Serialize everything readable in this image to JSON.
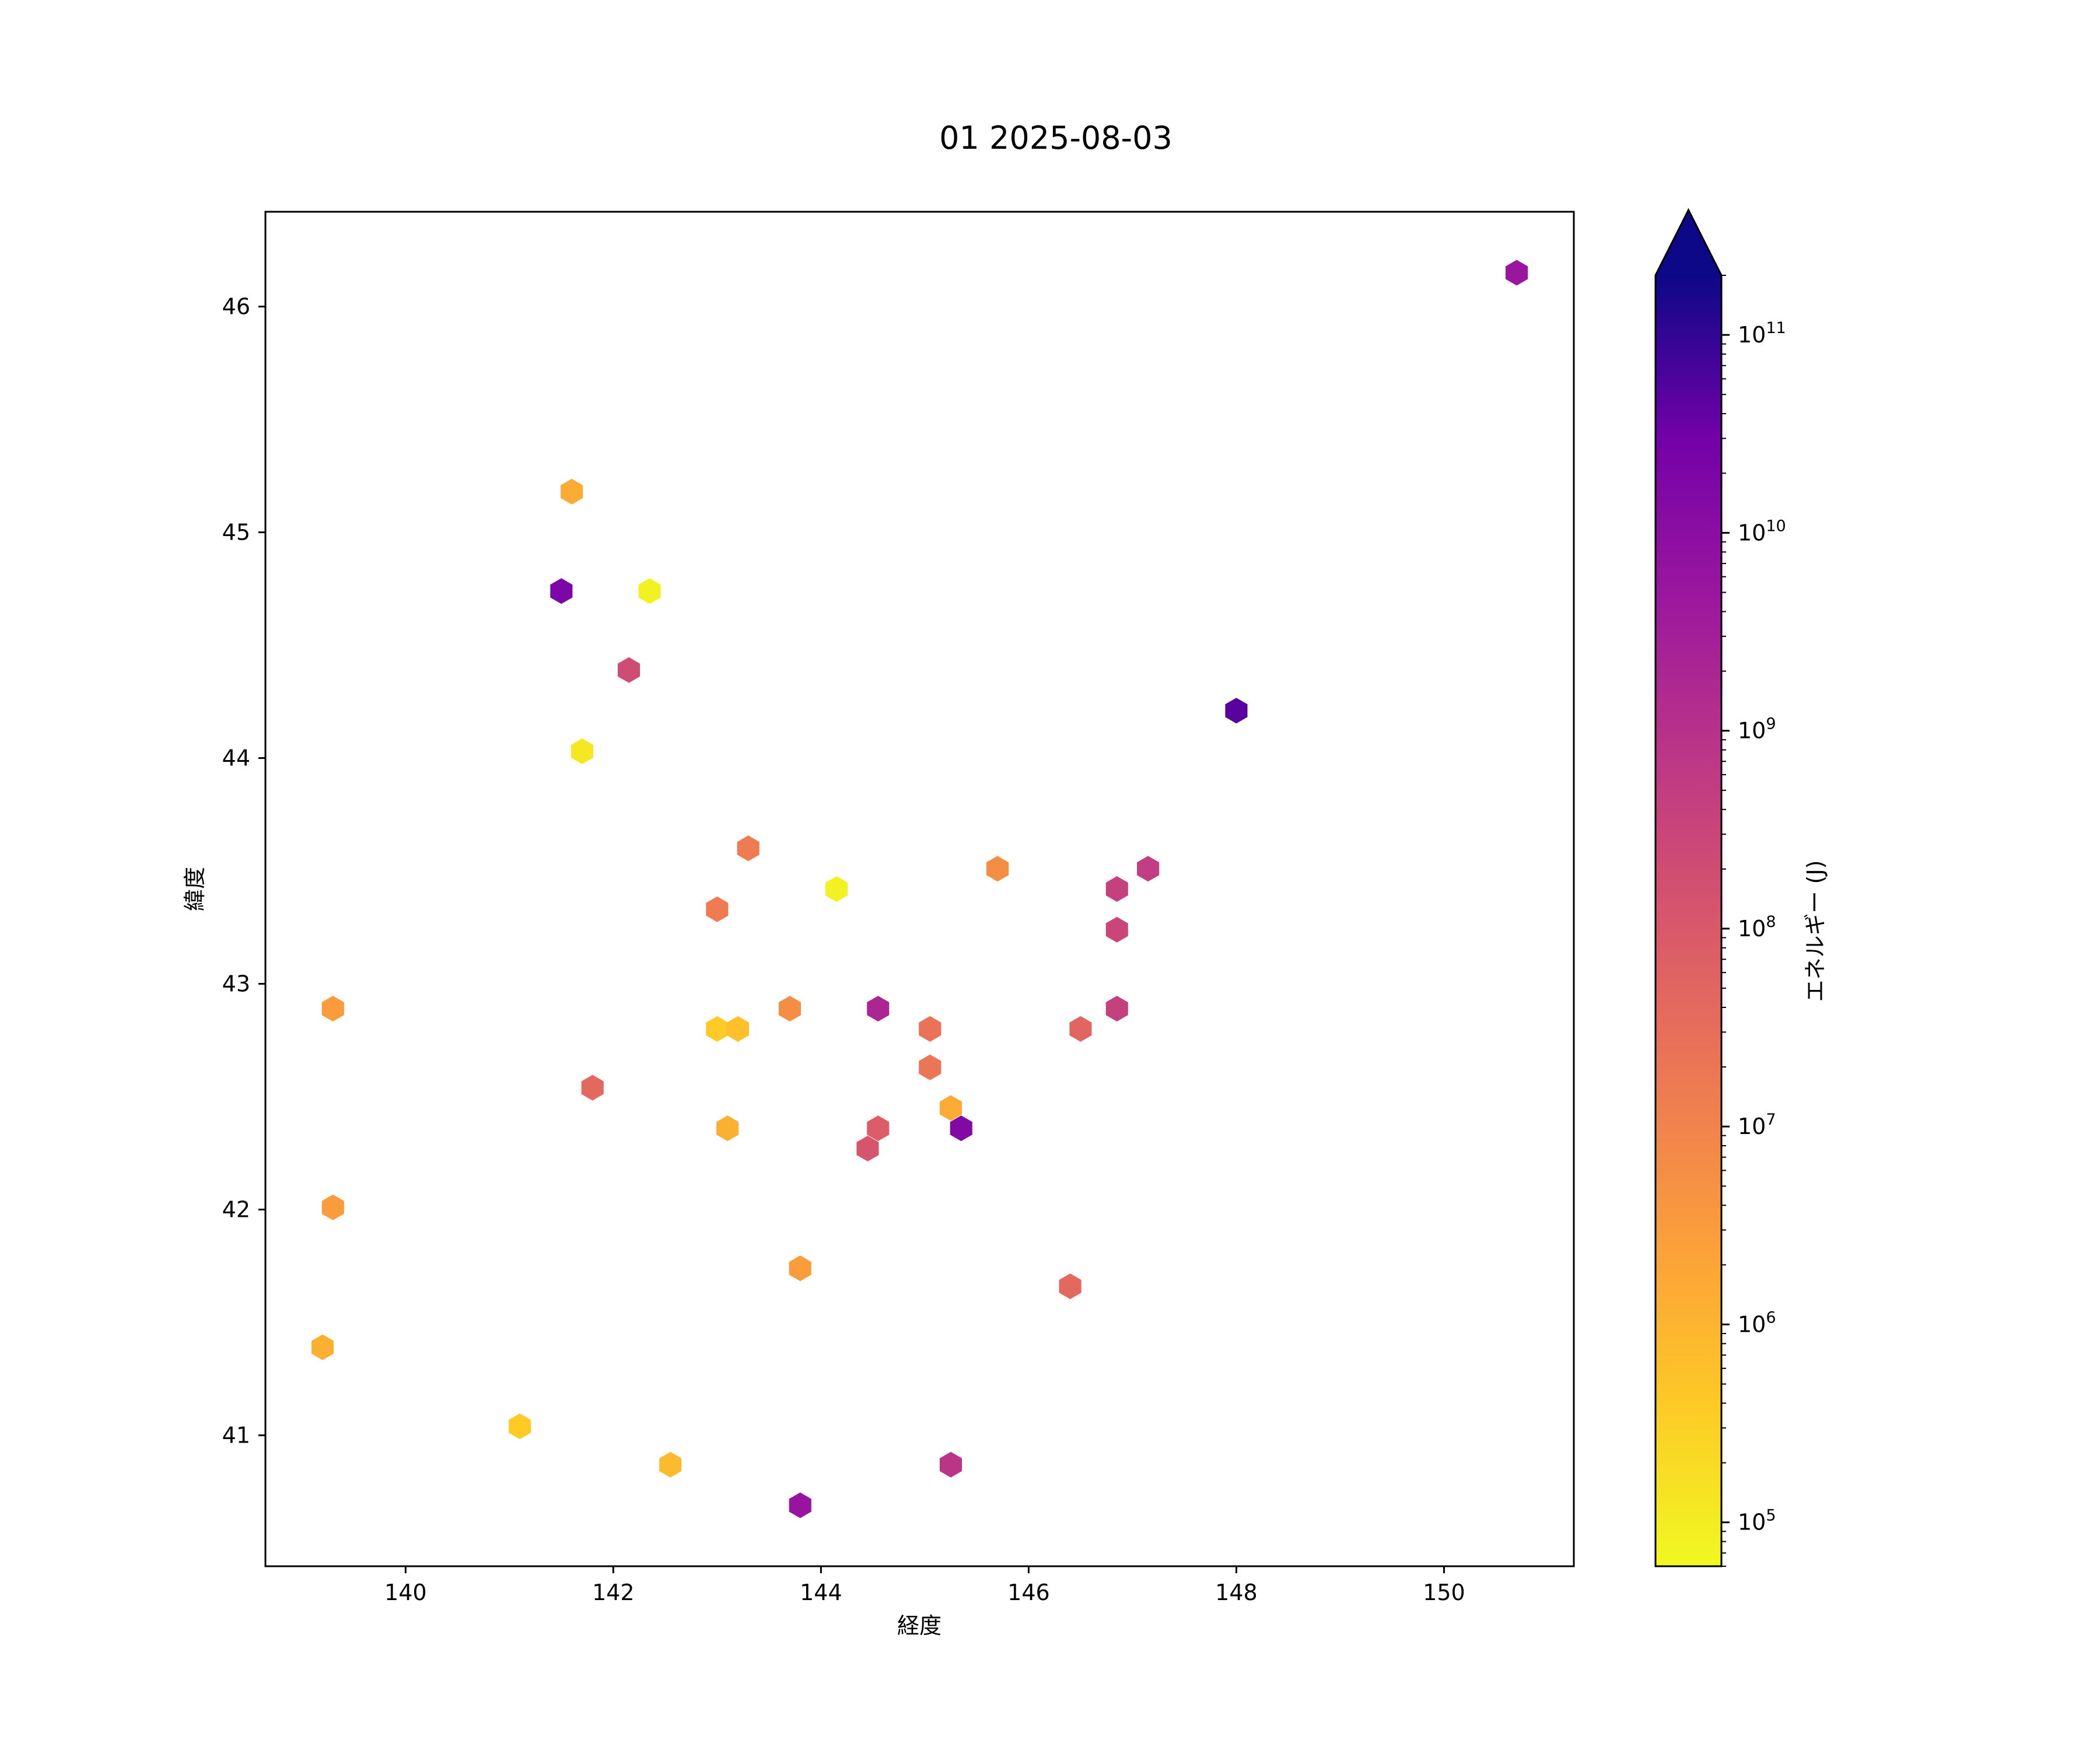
{
  "chart_data": {
    "type": "scatter",
    "title": "01 2025-08-03",
    "xlabel": "経度",
    "ylabel": "緯度",
    "xlim": [
      138.65,
      151.25
    ],
    "ylim": [
      40.42,
      46.42
    ],
    "x_ticks": [
      140,
      142,
      144,
      146,
      148,
      150
    ],
    "y_ticks": [
      41,
      42,
      43,
      44,
      45,
      46
    ],
    "grid": false,
    "marker": "hexagon",
    "colorbar": {
      "label": "エネルギー (J)",
      "scale": "log",
      "colormap": "plasma_r",
      "range": [
        60000,
        200000000000
      ],
      "extend": "max",
      "extend_color": "#0d0887",
      "tick_values": [
        100000,
        1000000,
        10000000,
        100000000,
        1000000000,
        10000000000,
        100000000000
      ],
      "tick_labels": [
        {
          "base": "10",
          "exp": "5"
        },
        {
          "base": "10",
          "exp": "6"
        },
        {
          "base": "10",
          "exp": "7"
        },
        {
          "base": "10",
          "exp": "8"
        },
        {
          "base": "10",
          "exp": "9"
        },
        {
          "base": "10",
          "exp": "10"
        },
        {
          "base": "10",
          "exp": "11"
        }
      ]
    },
    "points": [
      {
        "x": 150.7,
        "y": 46.15,
        "energy": 5000000000
      },
      {
        "x": 141.6,
        "y": 45.18,
        "energy": 1500000
      },
      {
        "x": 141.5,
        "y": 44.74,
        "energy": 20000000000
      },
      {
        "x": 142.35,
        "y": 44.74,
        "energy": 80000
      },
      {
        "x": 142.15,
        "y": 44.39,
        "energy": 200000000
      },
      {
        "x": 148.0,
        "y": 44.21,
        "energy": 50000000000
      },
      {
        "x": 141.7,
        "y": 44.03,
        "energy": 120000
      },
      {
        "x": 143.3,
        "y": 43.6,
        "energy": 15000000
      },
      {
        "x": 145.7,
        "y": 43.51,
        "energy": 6000000
      },
      {
        "x": 147.15,
        "y": 43.51,
        "energy": 500000000
      },
      {
        "x": 144.15,
        "y": 43.42,
        "energy": 80000
      },
      {
        "x": 146.85,
        "y": 43.42,
        "energy": 400000000
      },
      {
        "x": 143.0,
        "y": 43.33,
        "energy": 15000000
      },
      {
        "x": 146.85,
        "y": 43.24,
        "energy": 300000000
      },
      {
        "x": 139.3,
        "y": 42.89,
        "energy": 3000000
      },
      {
        "x": 143.7,
        "y": 42.89,
        "energy": 6000000
      },
      {
        "x": 144.55,
        "y": 42.89,
        "energy": 2000000000
      },
      {
        "x": 146.85,
        "y": 42.89,
        "energy": 400000000
      },
      {
        "x": 143.0,
        "y": 42.8,
        "energy": 400000
      },
      {
        "x": 143.2,
        "y": 42.8,
        "energy": 600000
      },
      {
        "x": 145.05,
        "y": 42.8,
        "energy": 25000000
      },
      {
        "x": 146.5,
        "y": 42.8,
        "energy": 50000000
      },
      {
        "x": 145.05,
        "y": 42.63,
        "energy": 20000000
      },
      {
        "x": 141.8,
        "y": 42.54,
        "energy": 40000000
      },
      {
        "x": 145.25,
        "y": 42.45,
        "energy": 1500000
      },
      {
        "x": 143.1,
        "y": 42.36,
        "energy": 1200000
      },
      {
        "x": 144.55,
        "y": 42.36,
        "energy": 80000000
      },
      {
        "x": 145.35,
        "y": 42.36,
        "energy": 15000000000
      },
      {
        "x": 144.45,
        "y": 42.27,
        "energy": 120000000
      },
      {
        "x": 139.3,
        "y": 42.01,
        "energy": 3000000
      },
      {
        "x": 143.8,
        "y": 41.74,
        "energy": 3000000
      },
      {
        "x": 146.4,
        "y": 41.66,
        "energy": 40000000
      },
      {
        "x": 139.2,
        "y": 41.39,
        "energy": 1200000
      },
      {
        "x": 141.1,
        "y": 41.04,
        "energy": 400000
      },
      {
        "x": 142.55,
        "y": 40.87,
        "energy": 800000
      },
      {
        "x": 145.25,
        "y": 40.87,
        "energy": 800000000
      },
      {
        "x": 143.8,
        "y": 40.69,
        "energy": 6000000000
      }
    ]
  }
}
